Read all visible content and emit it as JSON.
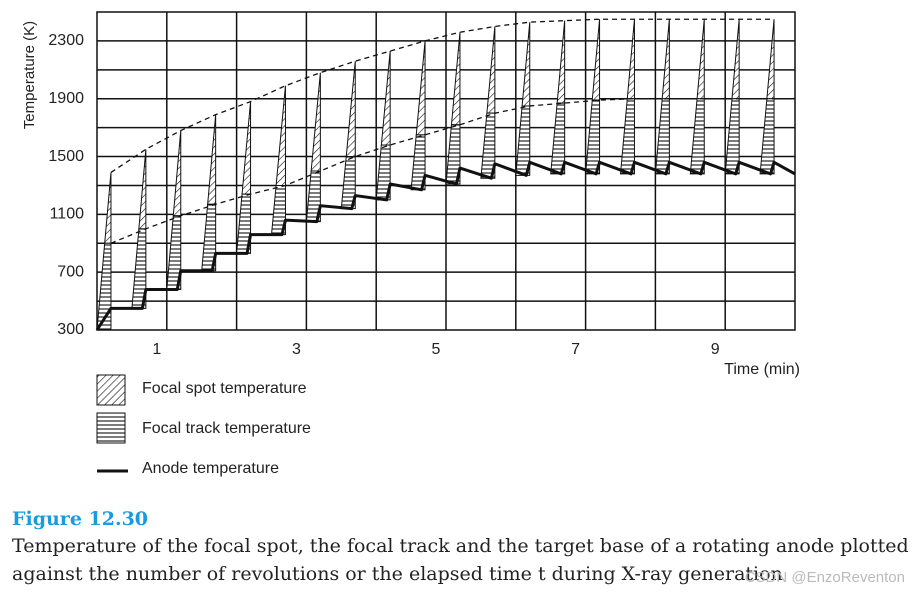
{
  "chart_data": {
    "type": "line",
    "y_label": "Temperature (K)",
    "x_label": "Time (min)",
    "xlim": [
      0,
      10
    ],
    "ylim": [
      300,
      2500
    ],
    "xticks": [
      1,
      3,
      5,
      7,
      9
    ],
    "yticks": [
      300,
      700,
      1100,
      1500,
      1900,
      2300
    ],
    "xgrid": [
      1,
      2,
      3,
      4,
      5,
      6,
      7,
      8,
      9
    ],
    "ygrid": [
      500,
      700,
      900,
      1100,
      1300,
      1500,
      1700,
      1900,
      2100,
      2300
    ],
    "grid": true,
    "series": [
      {
        "name": "Focal spot temperature",
        "color": "#000000",
        "x": [
          0.2,
          0.7,
          1.2,
          1.7,
          2.2,
          2.7,
          3.2,
          3.7,
          4.2,
          4.7,
          5.2,
          5.7,
          6.2,
          6.7,
          7.2,
          7.7,
          8.2,
          8.7,
          9.2,
          9.7
        ],
        "values": [
          1390,
          1550,
          1680,
          1790,
          1880,
          1990,
          2080,
          2160,
          2230,
          2300,
          2360,
          2400,
          2430,
          2440,
          2450,
          2450,
          2450,
          2450,
          2450,
          2450
        ]
      },
      {
        "name": "Focal track temperature",
        "color": "#000000",
        "x": [
          0.2,
          0.7,
          1.2,
          1.7,
          2.2,
          2.7,
          3.2,
          3.7,
          4.2,
          4.7,
          5.2,
          5.7,
          6.2,
          6.7,
          7.2,
          7.7,
          8.2,
          8.7,
          9.2,
          9.7
        ],
        "values": [
          900,
          1000,
          1090,
          1170,
          1240,
          1300,
          1400,
          1500,
          1580,
          1650,
          1720,
          1800,
          1850,
          1870,
          1890,
          1900,
          1900,
          1900,
          1900,
          1900
        ]
      },
      {
        "name": "Anode temperature",
        "color": "#000000",
        "x": [
          0,
          0.2,
          0.65,
          0.7,
          1.15,
          1.2,
          1.65,
          1.7,
          2.15,
          2.2,
          2.65,
          2.7,
          3.15,
          3.2,
          3.65,
          3.7,
          4.15,
          4.2,
          4.65,
          4.7,
          5.15,
          5.2,
          5.65,
          5.7,
          6.15,
          6.2,
          6.65,
          6.7,
          7.15,
          7.2,
          7.65,
          7.7,
          8.15,
          8.2,
          8.65,
          8.7,
          9.15,
          9.2,
          9.65,
          9.7,
          10
        ],
        "values": [
          300,
          450,
          450,
          580,
          580,
          710,
          710,
          830,
          830,
          960,
          960,
          1060,
          1050,
          1160,
          1140,
          1230,
          1200,
          1310,
          1270,
          1370,
          1310,
          1420,
          1350,
          1450,
          1370,
          1460,
          1380,
          1460,
          1380,
          1460,
          1380,
          1460,
          1380,
          1460,
          1380,
          1460,
          1380,
          1460,
          1380,
          1460,
          1380
        ]
      }
    ]
  },
  "figure_label": "Figure 12.30",
  "caption_lines": [
    "Temperature of the focal spot, the focal track and the target base of a rotating anode plotted",
    "against the number of revolutions or the elapsed time t during X-ray generation"
  ],
  "watermark": "CSDN @EnzoReventon"
}
